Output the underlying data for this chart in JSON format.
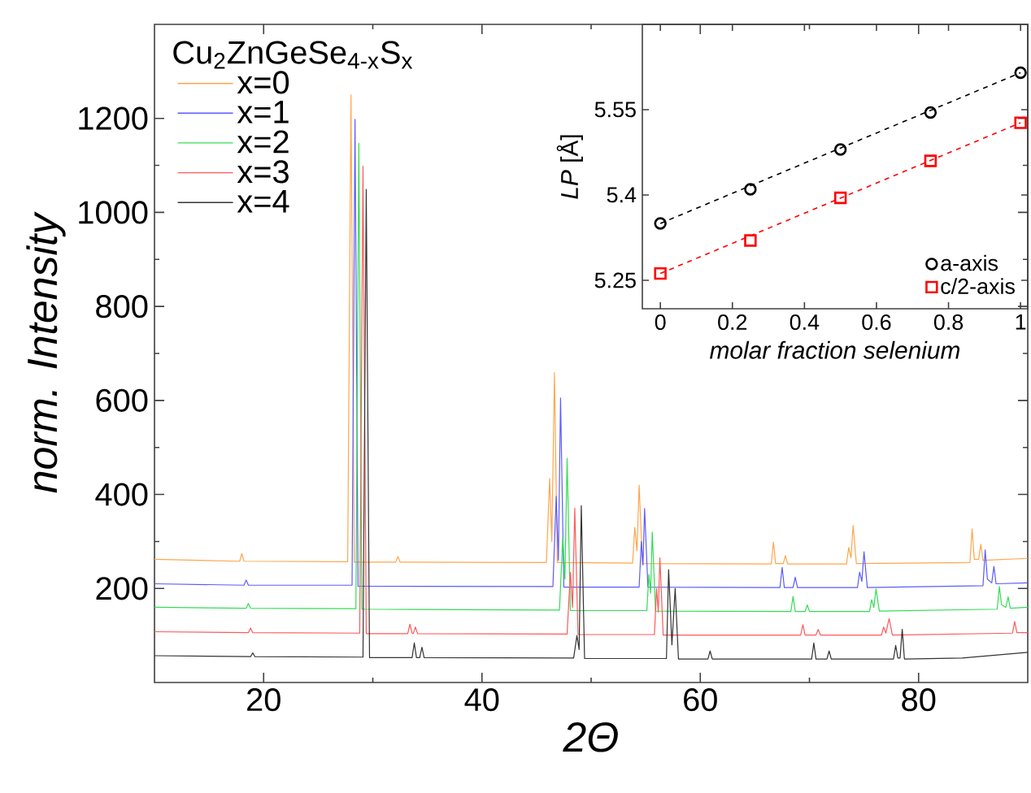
{
  "chart_data": [
    {
      "type": "line",
      "xlabel": "2Θ",
      "ylabel": "norm. Intensity",
      "legend_title": "Cu$_{2}$ZnGeSe$_{4-x}$S$_{x}$",
      "xlim": [
        10,
        90
      ],
      "ylim": [
        0,
        1400
      ],
      "xticks": [
        20,
        40,
        60,
        80
      ],
      "yticks": [
        200,
        400,
        600,
        800,
        1000,
        1200
      ],
      "legend": "top left",
      "series": [
        {
          "name": "x=0",
          "color": "#ffa64d",
          "x": [
            10,
            17.8,
            18.0,
            18.2,
            27.7,
            28.0,
            28.3,
            32.1,
            32.3,
            32.5,
            45.9,
            46.2,
            46.4,
            46.64,
            46.9,
            53.8,
            54.0,
            54.2,
            54.4,
            54.7,
            66.5,
            66.7,
            66.9,
            67.6,
            67.8,
            68.0,
            73.4,
            73.6,
            73.8,
            74.0,
            74.3,
            84.7,
            84.9,
            85.1,
            85.5,
            85.7,
            85.9,
            90
          ],
          "values": [
            262,
            258,
            274,
            258,
            257,
            1250,
            256,
            256,
            268,
            256,
            255,
            434,
            300,
            659,
            255,
            254,
            330,
            280,
            420,
            253,
            252,
            299,
            253,
            253,
            270,
            252,
            252,
            287,
            265,
            334,
            253,
            255,
            327,
            262,
            262,
            294,
            260,
            264
          ]
        },
        {
          "name": "x=1",
          "color": "#5b5bff",
          "x": [
            10,
            18.2,
            18.4,
            18.6,
            28.1,
            28.37,
            28.65,
            46.5,
            46.8,
            47.0,
            47.2,
            47.5,
            54.4,
            54.6,
            54.75,
            54.9,
            55.2,
            67.3,
            67.5,
            67.7,
            68.5,
            68.7,
            68.9,
            74.4,
            74.6,
            74.8,
            75.0,
            75.3,
            85.9,
            86.1,
            86.3,
            86.7,
            86.9,
            87.1,
            90
          ],
          "values": [
            210,
            207,
            218,
            207,
            207,
            1198,
            205,
            204,
            396,
            260,
            605,
            203,
            203,
            300,
            250,
            370,
            203,
            202,
            245,
            202,
            202,
            224,
            202,
            202,
            235,
            215,
            278,
            202,
            206,
            282,
            220,
            212,
            247,
            210,
            212
          ]
        },
        {
          "name": "x=2",
          "color": "#33dd55",
          "x": [
            10,
            18.4,
            18.6,
            18.8,
            28.45,
            28.72,
            29.0,
            47.1,
            47.4,
            47.6,
            47.8,
            48.1,
            55.1,
            55.3,
            55.45,
            55.6,
            55.9,
            68.3,
            68.5,
            68.7,
            69.6,
            69.8,
            70.0,
            75.5,
            75.7,
            75.9,
            76.1,
            76.4,
            87.2,
            87.4,
            87.6,
            88.0,
            88.2,
            88.4,
            90
          ],
          "values": [
            160,
            158,
            168,
            158,
            157,
            1147,
            156,
            154,
            308,
            220,
            477,
            153,
            153,
            230,
            190,
            320,
            152,
            151,
            183,
            151,
            151,
            165,
            151,
            151,
            176,
            160,
            199,
            152,
            156,
            204,
            165,
            160,
            182,
            158,
            160
          ]
        },
        {
          "name": "x=3",
          "color": "#ff5a5a",
          "x": [
            10,
            18.6,
            18.8,
            19.0,
            28.8,
            29.1,
            29.4,
            33.2,
            33.4,
            33.6,
            33.7,
            33.9,
            34.1,
            47.8,
            48.1,
            48.3,
            48.5,
            48.8,
            55.8,
            56.0,
            56.15,
            56.3,
            56.6,
            69.2,
            69.4,
            69.6,
            70.6,
            70.8,
            71.0,
            76.6,
            76.8,
            77.0,
            77.3,
            77.6,
            88.6,
            88.8,
            89.0,
            90
          ],
          "values": [
            108,
            106,
            116,
            106,
            105,
            1098,
            104,
            104,
            124,
            105,
            104,
            118,
            104,
            103,
            234,
            160,
            371,
            102,
            102,
            200,
            150,
            265,
            101,
            101,
            123,
            101,
            101,
            113,
            101,
            101,
            118,
            105,
            136,
            101,
            105,
            130,
            106,
            106
          ]
        },
        {
          "name": "x=4",
          "color": "#333333",
          "x": [
            10,
            18.8,
            19.0,
            19.2,
            29.1,
            29.4,
            29.7,
            33.6,
            33.8,
            34.0,
            34.3,
            34.5,
            34.7,
            48.4,
            48.7,
            48.9,
            49.1,
            49.4,
            56.9,
            57.1,
            57.4,
            57.7,
            58.0,
            60.7,
            60.9,
            61.1,
            70.2,
            70.4,
            70.6,
            71.6,
            71.8,
            72.0,
            77.7,
            77.9,
            78.1,
            78.3,
            78.5,
            78.7,
            84,
            90
          ],
          "values": [
            57,
            55,
            63,
            55,
            54,
            1049,
            53,
            53,
            84,
            53,
            53,
            75,
            53,
            52,
            100,
            70,
            376,
            51,
            51,
            240,
            80,
            200,
            50,
            50,
            67,
            50,
            50,
            84,
            50,
            50,
            67,
            50,
            50,
            79,
            52,
            52,
            113,
            50,
            52,
            64
          ]
        }
      ]
    },
    {
      "type": "scatter",
      "xlabel": "molar fraction selenium",
      "ylabel": "*LP* [Å]",
      "xlim": [
        -0.05,
        1.02
      ],
      "ylim": [
        5.2,
        5.7
      ],
      "xticks": [
        0,
        0.2,
        0.4,
        0.6,
        0.8,
        1
      ],
      "yticks": [
        5.25,
        5.4,
        5.55
      ],
      "legend": "bottom right",
      "series": [
        {
          "name": "a-axis",
          "color": "#000000",
          "marker": "circle",
          "x": [
            0,
            0.25,
            0.5,
            0.75,
            1
          ],
          "values": [
            5.35,
            5.41,
            5.48,
            5.545,
            5.615
          ]
        },
        {
          "name": "c/2-axis",
          "color": "#ff0000",
          "marker": "square",
          "x": [
            0,
            0.25,
            0.5,
            0.75,
            1
          ],
          "values": [
            5.262,
            5.32,
            5.395,
            5.46,
            5.527
          ]
        },
        {
          "type": "line",
          "line_style": "dashed",
          "color": "#000000",
          "x": [
            0,
            1
          ],
          "values": [
            5.35,
            5.615
          ]
        },
        {
          "type": "line",
          "line_style": "dashed",
          "color": "#ff0000",
          "x": [
            0,
            1
          ],
          "values": [
            5.262,
            5.527
          ]
        }
      ]
    }
  ]
}
